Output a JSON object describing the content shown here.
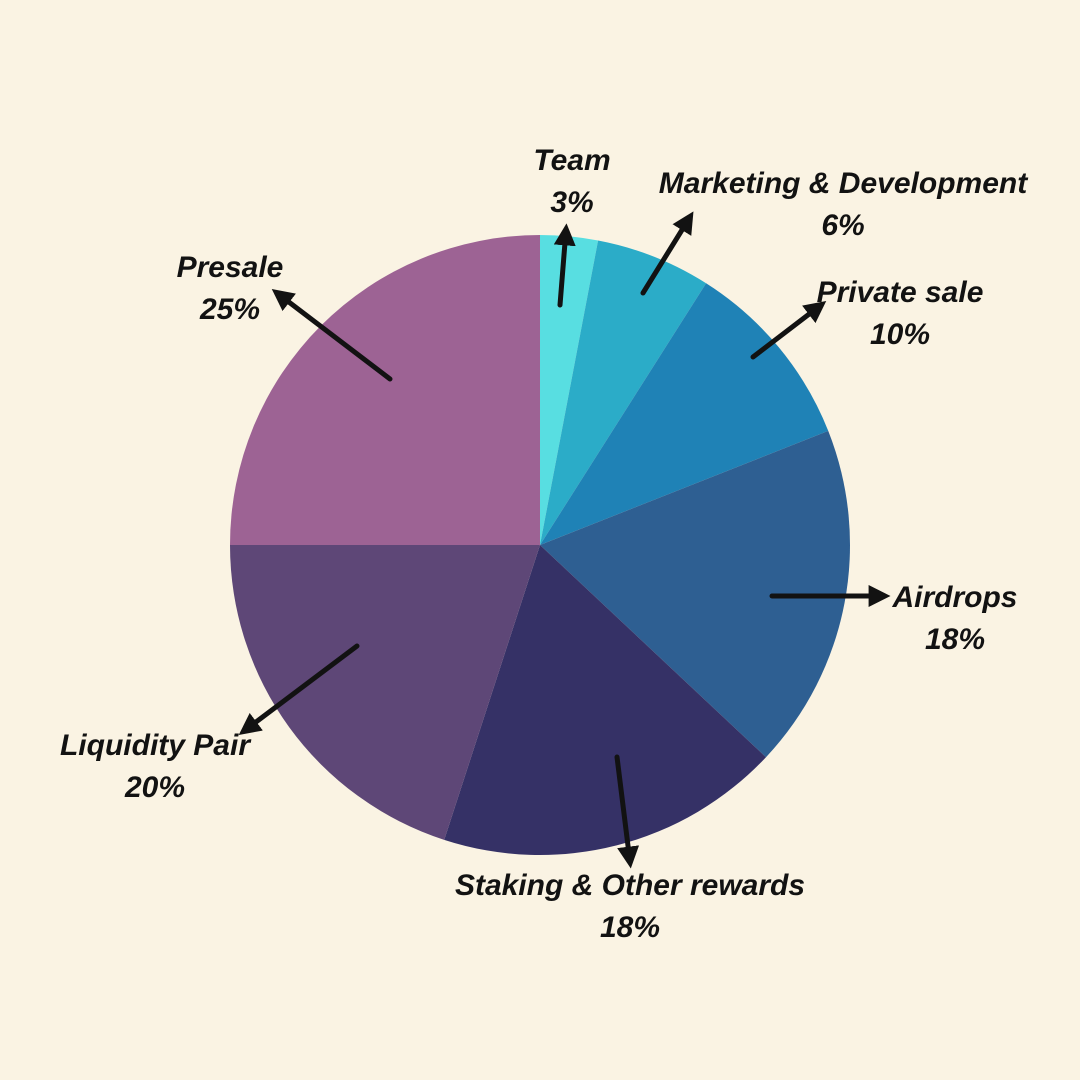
{
  "page": {
    "background": "#FAF3E3",
    "text_color": "#121212",
    "arrow_color": "#121212"
  },
  "chart_data": {
    "type": "pie",
    "title": "",
    "legend": "none",
    "start_angle_deg": 0,
    "direction": "clockwise",
    "annotation_style": "arrow-callouts",
    "slices": [
      {
        "label": "Team",
        "value": 3,
        "pct_label": "3%",
        "color": "#58DEE1"
      },
      {
        "label": "Marketing & Development",
        "value": 6,
        "pct_label": "6%",
        "color": "#2BACC8"
      },
      {
        "label": "Private sale",
        "value": 10,
        "pct_label": "10%",
        "color": "#1F82B6"
      },
      {
        "label": "Airdrops",
        "value": 18,
        "pct_label": "18%",
        "color": "#2E5F92"
      },
      {
        "label": "Staking & Other rewards",
        "value": 18,
        "pct_label": "18%",
        "color": "#353166"
      },
      {
        "label": "Liquidity Pair",
        "value": 20,
        "pct_label": "20%",
        "color": "#5E4777"
      },
      {
        "label": "Presale",
        "value": 25,
        "pct_label": "25%",
        "color": "#9D6394"
      }
    ]
  }
}
